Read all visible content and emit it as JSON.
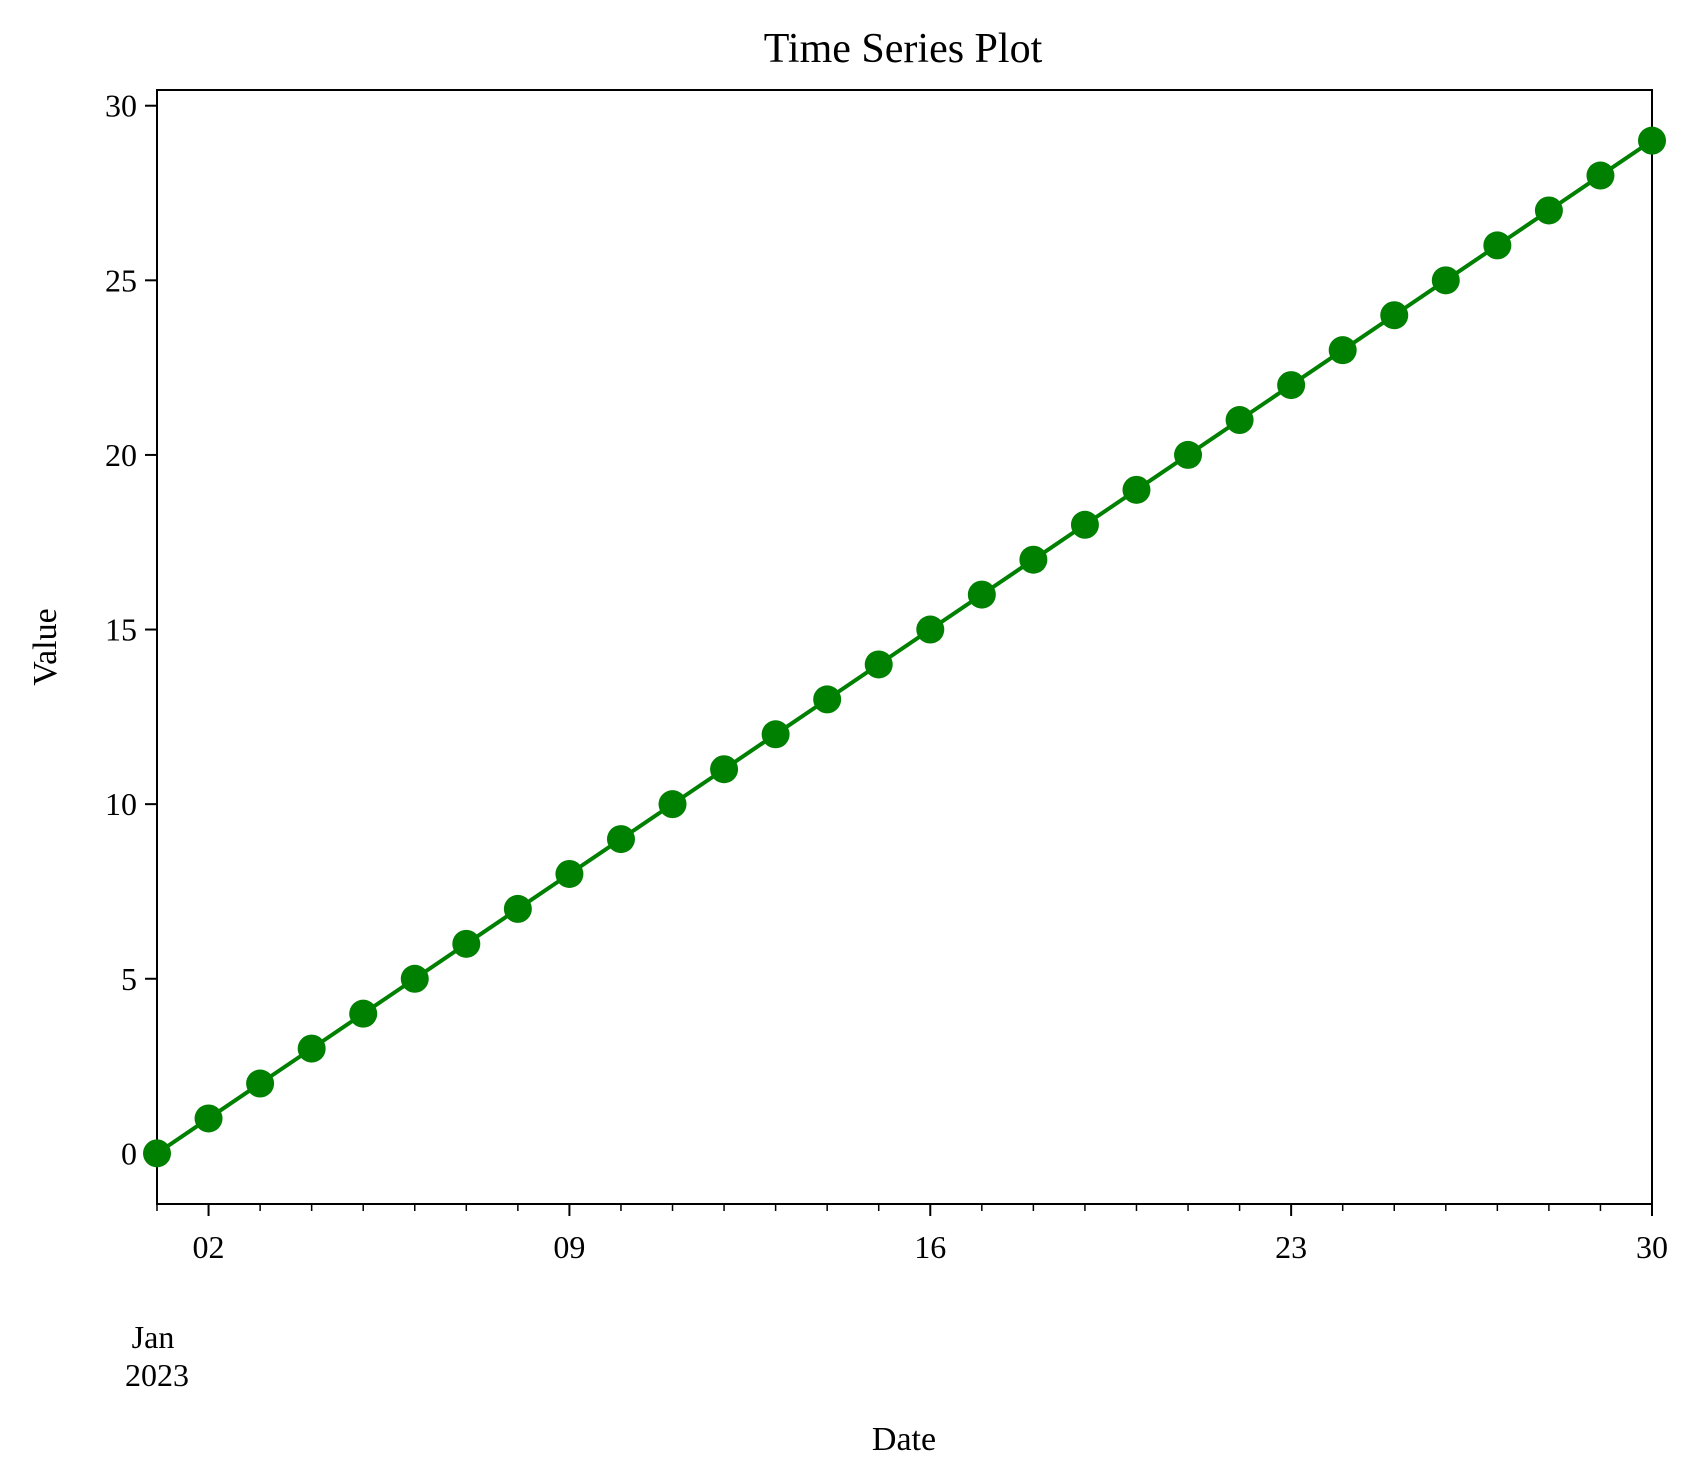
{
  "chart_data": {
    "type": "line",
    "title": "Time Series Plot",
    "xlabel": "Date",
    "ylabel": "Value",
    "x": [
      "2023-01-01",
      "2023-01-02",
      "2023-01-03",
      "2023-01-04",
      "2023-01-05",
      "2023-01-06",
      "2023-01-07",
      "2023-01-08",
      "2023-01-09",
      "2023-01-10",
      "2023-01-11",
      "2023-01-12",
      "2023-01-13",
      "2023-01-14",
      "2023-01-15",
      "2023-01-16",
      "2023-01-17",
      "2023-01-18",
      "2023-01-19",
      "2023-01-20",
      "2023-01-21",
      "2023-01-22",
      "2023-01-23",
      "2023-01-24",
      "2023-01-25",
      "2023-01-26",
      "2023-01-27",
      "2023-01-28",
      "2023-01-29",
      "2023-01-30"
    ],
    "series": [
      {
        "values": [
          0,
          1,
          2,
          3,
          4,
          5,
          6,
          7,
          8,
          9,
          10,
          11,
          12,
          13,
          14,
          15,
          16,
          17,
          18,
          19,
          20,
          21,
          22,
          23,
          24,
          25,
          26,
          27,
          28,
          29
        ],
        "color": "#008000",
        "marker": "circle"
      }
    ],
    "xlim": [
      "2023-01-01",
      "2023-01-30"
    ],
    "ylim": [
      -1.45,
      30.45
    ],
    "x_major_ticks": [
      {
        "date": "2023-01-02",
        "label": "02"
      },
      {
        "date": "2023-01-09",
        "label": "09"
      },
      {
        "date": "2023-01-16",
        "label": "16"
      },
      {
        "date": "2023-01-23",
        "label": "23"
      },
      {
        "date": "2023-01-30",
        "label": "30"
      }
    ],
    "x_secondary_label": [
      "Jan",
      "2023"
    ],
    "y_ticks": [
      0,
      5,
      10,
      15,
      20,
      25,
      30
    ],
    "grid": false,
    "legend": "none"
  }
}
